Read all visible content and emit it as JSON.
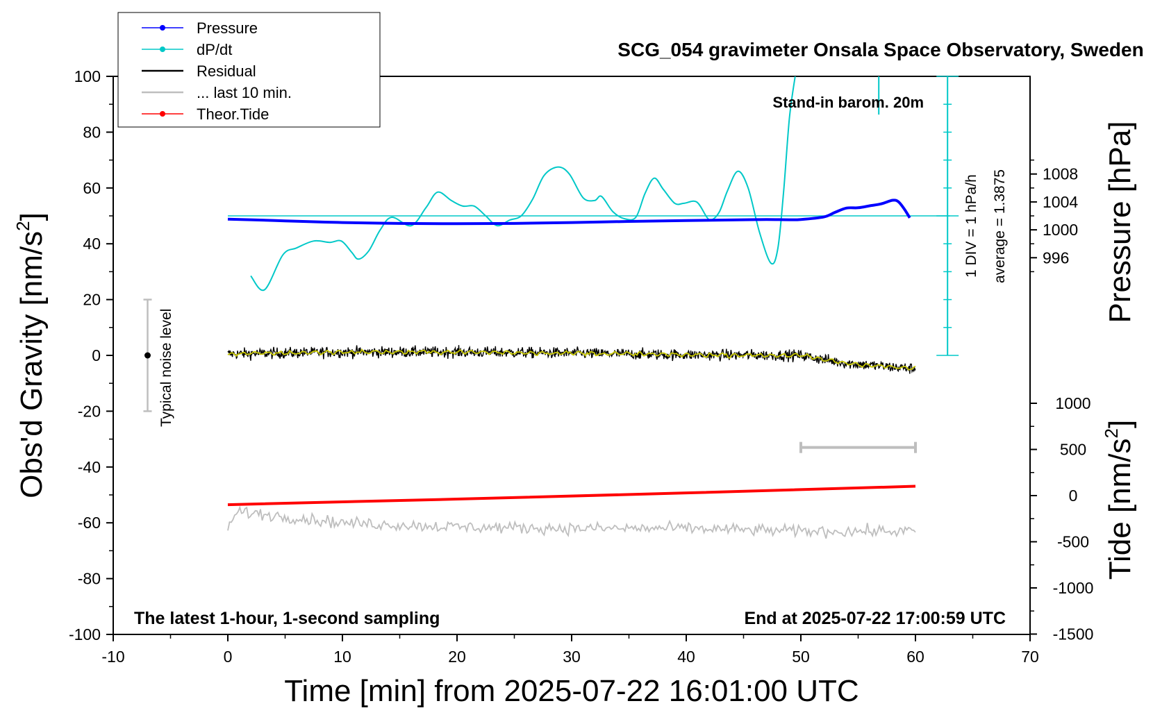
{
  "chart_data": {
    "type": "line",
    "title": "SCG_054 gravimeter Onsala Space Observatory, Sweden",
    "xlabel": "Time [min] from 2025-07-22 16:01:00 UTC",
    "ylabel_left": "Obs'd Gravity [nm/s",
    "ylabel_left_sup": "2",
    "ylabel_left_close": "]",
    "ylabel_right_top": "Pressure [hPa]",
    "ylabel_right_bottom": "Tide [nm/s",
    "ylabel_right_bottom_sup": "2",
    "ylabel_right_bottom_close": "]",
    "xlim": [
      -10,
      70
    ],
    "ylim": [
      -100,
      100
    ],
    "xticks": [
      "-10",
      "0",
      "10",
      "20",
      "30",
      "40",
      "50",
      "60",
      "70"
    ],
    "yticks": [
      "-100",
      "-80",
      "-60",
      "-40",
      "-20",
      "0",
      "20",
      "40",
      "60",
      "80",
      "100"
    ],
    "pressure_ticks": [
      "996",
      "1000",
      "1004",
      "1008"
    ],
    "tide_ticks": [
      "-1500",
      "-1000",
      "-500",
      "0",
      "500",
      "1000"
    ],
    "annotations": {
      "stand_in": "Stand-in barom. 20m",
      "div_label": "1 DIV = 1 hPa/h",
      "average_label": "average = 1.3875",
      "noise_label": "Typical noise level",
      "bottom_left": "The latest 1-hour, 1-second sampling",
      "bottom_right": "End at 2025-07-22 17:00:59 UTC"
    },
    "legend": [
      {
        "label": "Pressure",
        "color": "#0000ff",
        "marker": true
      },
      {
        "label": "dP/dt",
        "color": "#00c8c8",
        "marker": true
      },
      {
        "label": "Residual",
        "color": "#000000",
        "marker": false
      },
      {
        "label": "... last 10 min.",
        "color": "#bebebe",
        "marker": false
      },
      {
        "label": "Theor.Tide",
        "color": "#ff0000",
        "marker": true
      }
    ],
    "colors": {
      "pressure": "#0000ff",
      "dpdt": "#00c8c8",
      "residual": "#000000",
      "residual_smooth": "#c8c800",
      "last10": "#bebebe",
      "tide": "#ff0000",
      "noise": "#bebebe"
    },
    "series": [
      {
        "name": "Pressure",
        "unit": "nm/s2 (left axis)",
        "x": [
          0,
          2,
          5,
          8,
          10,
          15,
          20,
          25,
          30,
          35,
          40,
          45,
          47,
          49,
          50,
          52,
          53,
          54,
          55,
          56,
          57,
          58,
          58.5,
          59,
          59.5
        ],
        "y": [
          48.8,
          48.6,
          48.2,
          47.8,
          47.6,
          47.3,
          47.2,
          47.3,
          47.6,
          48.0,
          48.3,
          48.6,
          48.7,
          48.6,
          48.7,
          49.6,
          51.3,
          52.8,
          52.9,
          53.6,
          54.3,
          55.6,
          55.1,
          52.6,
          49.3
        ]
      },
      {
        "name": "dP/dt",
        "unit": "nm/s2 (left axis)",
        "x": [
          2.0,
          3.2,
          4.8,
          6.0,
          7.5,
          8.9,
          9.9,
          10.8,
          11.4,
          12.3,
          13.3,
          14.3,
          16.0,
          17.3,
          18.3,
          19.5,
          20.5,
          21.5,
          22.5,
          23.5,
          24.6,
          25.6,
          26.6,
          27.6,
          28.8,
          29.8,
          31.0,
          32.0,
          32.6,
          33.6,
          34.6,
          35.6,
          36.4,
          37.2,
          38.0,
          39.0,
          39.8,
          40.9,
          41.8,
          42.2,
          42.9,
          43.6,
          44.5,
          45.4,
          46.4,
          47.4,
          48.0,
          48.5,
          49.0,
          49.5
        ],
        "y": [
          28.5,
          23.5,
          36.0,
          38.5,
          41.0,
          40.5,
          41.0,
          37.0,
          34.5,
          37.5,
          45.0,
          49.5,
          46.5,
          53.0,
          58.5,
          55.5,
          53.5,
          53.5,
          50.0,
          46.5,
          48.5,
          50.0,
          56.0,
          64.5,
          67.5,
          65.0,
          56.5,
          55.5,
          57.0,
          51.5,
          49.0,
          49.5,
          58.0,
          63.5,
          59.5,
          54.5,
          54.5,
          55.0,
          49.5,
          48.5,
          51.5,
          59.0,
          66.0,
          60.0,
          44.0,
          33.0,
          38.5,
          59.0,
          85.0,
          100
        ]
      },
      {
        "name": "dP/dt (re-entry)",
        "unit": "nm/s2 (left axis)",
        "x": [
          56.8,
          56.8
        ],
        "y": [
          100,
          86.3
        ]
      },
      {
        "name": "Residual",
        "unit": "nm/s2 (left axis)",
        "x": [
          0,
          10,
          20,
          30,
          40,
          50,
          52,
          54,
          56,
          58,
          60
        ],
        "y": [
          0.5,
          1.2,
          1.2,
          0.8,
          0.2,
          0.0,
          -1.5,
          -2.8,
          -3.5,
          -4.2,
          -4.8
        ]
      },
      {
        "name": "... last 10 min.",
        "unit": "nm/s2 (left axis)",
        "x": [
          0,
          1,
          10,
          20,
          30,
          40,
          50,
          60
        ],
        "y": [
          -61,
          -56,
          -60,
          -61.5,
          -62,
          -62,
          -63,
          -63
        ]
      },
      {
        "name": "Theor.Tide",
        "unit": "nm/s2 (left axis)",
        "x": [
          0,
          20,
          40,
          60
        ],
        "y": [
          -53.5,
          -51.5,
          -49.3,
          -46.9
        ]
      }
    ],
    "dpdt_reference_line": {
      "x": [
        0,
        63
      ],
      "y": 50
    },
    "last10_bar": {
      "x_start": 50,
      "x_end": 60,
      "y": -33
    },
    "noise_bar": {
      "x": -7,
      "y_low": -20,
      "y_high": 20,
      "center": 0
    }
  }
}
